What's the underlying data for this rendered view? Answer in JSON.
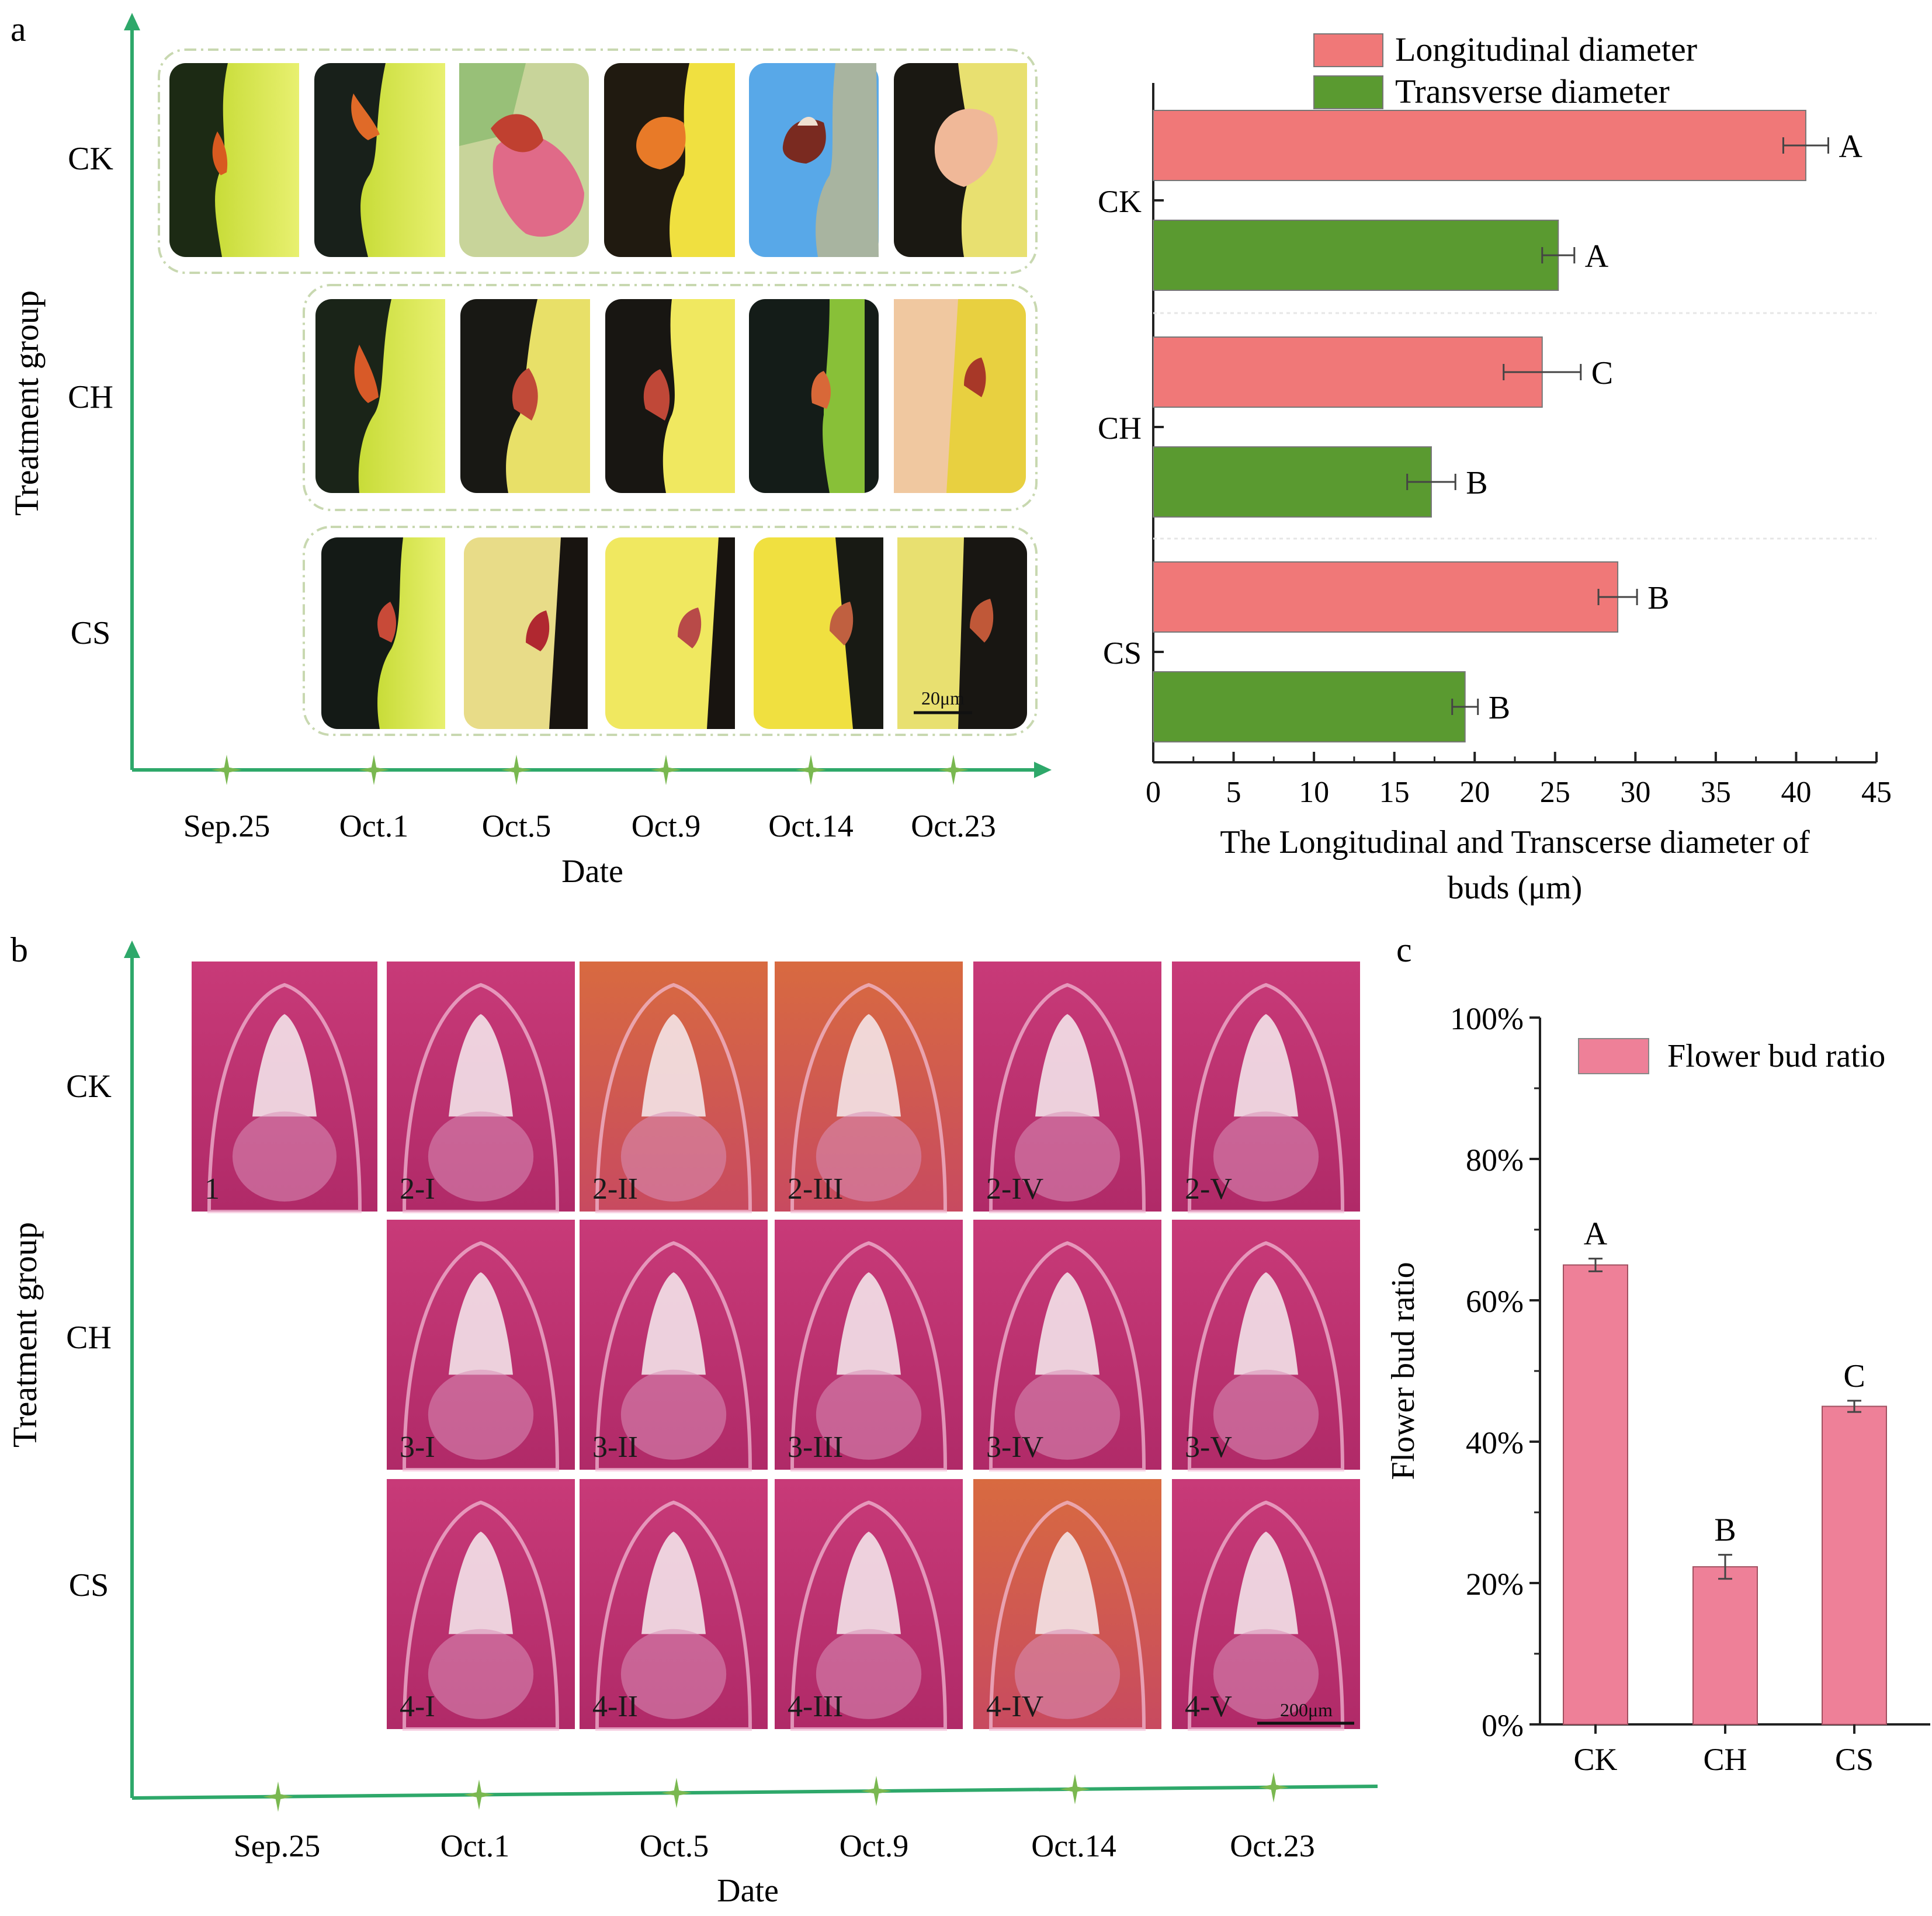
{
  "panel_labels": {
    "a": "a",
    "b": "b",
    "c": "c"
  },
  "colors": {
    "axis_green": "#2ea86a",
    "star_green": "#7ab850",
    "bar_pink": "#f07878",
    "bar_green": "#5a9a30",
    "ratio_pink": "#ee8098",
    "frame_green": "#c8d8b0"
  },
  "panel_a_photos": {
    "y_label": "Treatment group",
    "x_label": "Date",
    "rows": [
      "CK",
      "CH",
      "CS"
    ],
    "dates": [
      "Sep.25",
      "Oct.1",
      "Oct.5",
      "Oct.9",
      "Oct.14",
      "Oct.23"
    ],
    "scale_bar": "20μm"
  },
  "panel_b_sections": {
    "y_label": "Treatment group",
    "x_label": "Date",
    "rows": [
      "CK",
      "CH",
      "CS"
    ],
    "dates": [
      "Sep.25",
      "Oct.1",
      "Oct.5",
      "Oct.9",
      "Oct.14",
      "Oct.23"
    ],
    "row_labels": [
      [
        "1",
        "2-I",
        "2-II",
        "2-III",
        "2-IV",
        "2-V"
      ],
      [
        "3-I",
        "3-II",
        "3-III",
        "3-IV",
        "3-V"
      ],
      [
        "4-I",
        "4-II",
        "4-III",
        "4-IV",
        "4-V"
      ]
    ],
    "scale_bar": "200μm"
  },
  "chart_data": [
    {
      "type": "bar",
      "orientation": "horizontal",
      "categories": [
        "CK",
        "CH",
        "CS"
      ],
      "series": [
        {
          "name": "Longitudinal diameter",
          "values": [
            40.6,
            24.2,
            28.9
          ],
          "errors": [
            1.4,
            2.4,
            1.2
          ],
          "letters": [
            "A",
            "C",
            "B"
          ]
        },
        {
          "name": "Transverse diameter",
          "values": [
            25.2,
            17.3,
            19.4
          ],
          "errors": [
            1.0,
            1.5,
            0.8
          ],
          "letters": [
            "A",
            "B",
            "B"
          ]
        }
      ],
      "xlabel": "The Longitudinal and Transcerse diameter of buds (μm)",
      "xlabel_lines": [
        "The Longitudinal and Transcerse diameter of",
        "buds (μm)"
      ],
      "xlim": [
        0,
        45
      ],
      "xticks": [
        "0",
        "5",
        "10",
        "15",
        "20",
        "25",
        "30",
        "35",
        "40",
        "45"
      ],
      "legend": "top"
    },
    {
      "type": "bar",
      "categories": [
        "CK",
        "CH",
        "CS"
      ],
      "values": [
        0.65,
        0.223,
        0.45
      ],
      "errors": [
        0.009,
        0.017,
        0.008
      ],
      "letters": [
        "A",
        "B",
        "C"
      ],
      "series_name": "Flower bud ratio",
      "ylabel": "Flower bud ratio",
      "ylim": [
        0,
        1.0
      ],
      "yticks": [
        "0%",
        "20%",
        "40%",
        "60%",
        "80%",
        "100%"
      ],
      "legend": "top-right"
    }
  ]
}
